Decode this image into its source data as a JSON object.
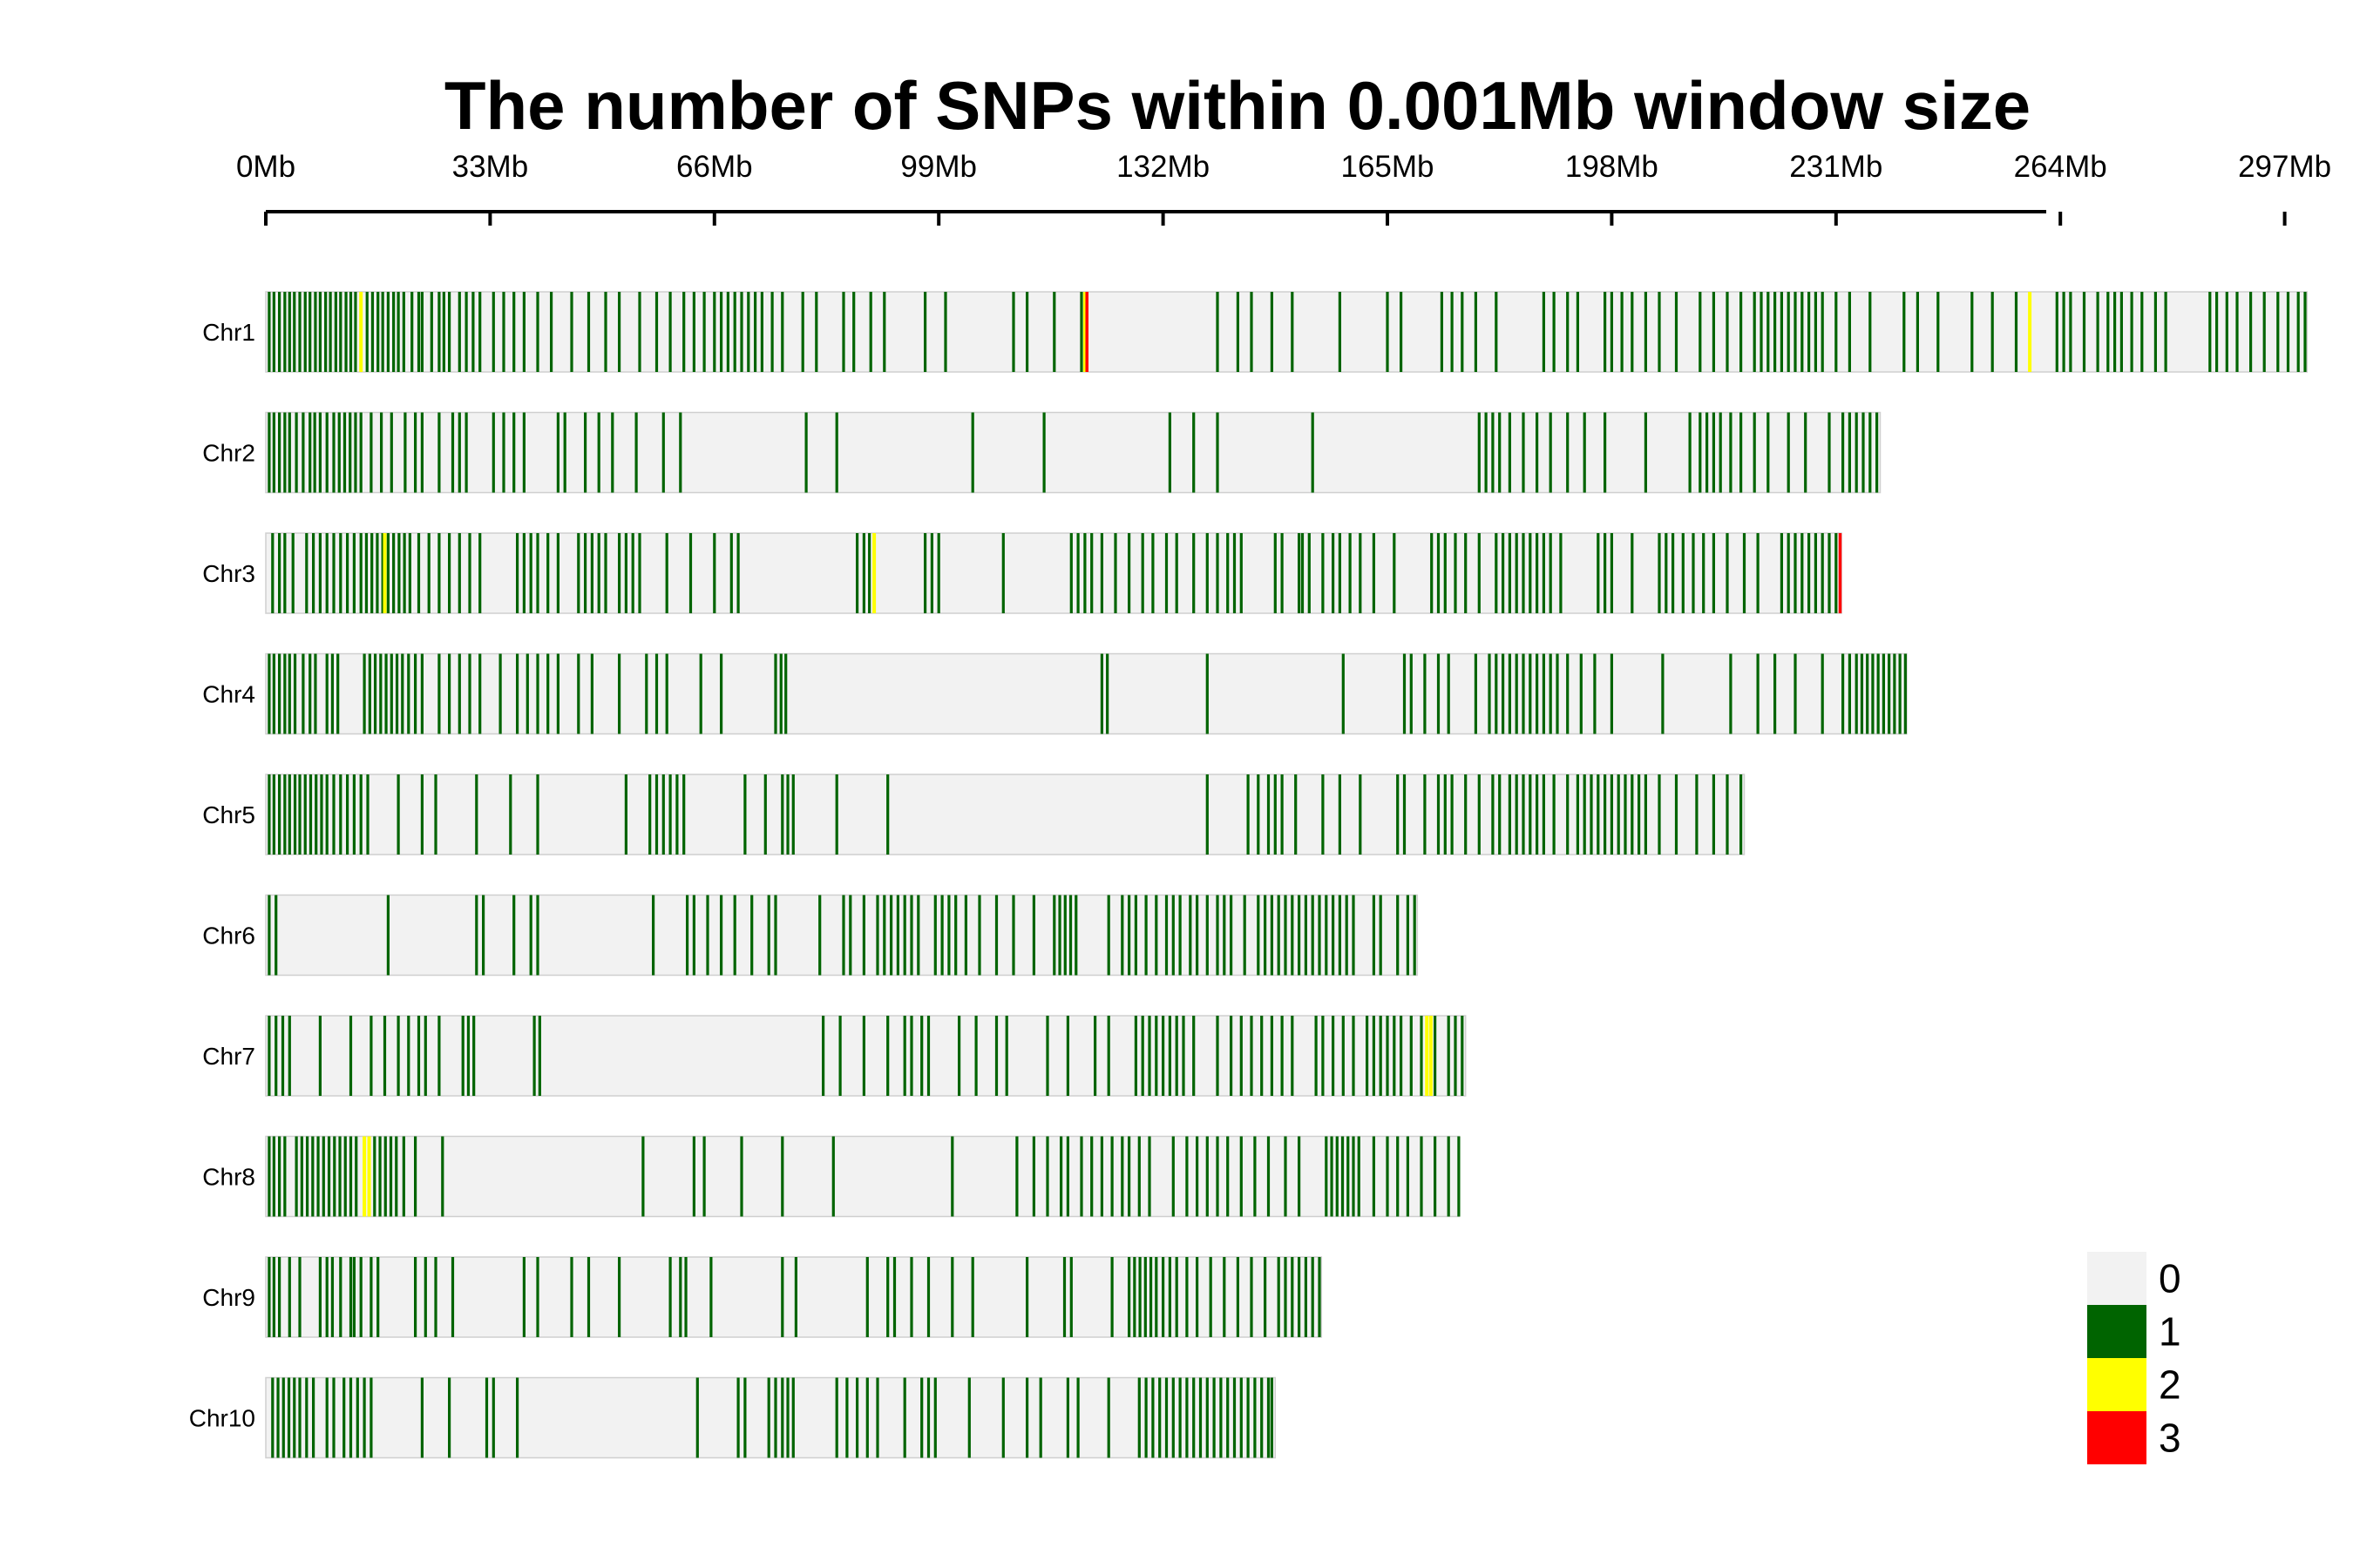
{
  "chart_data": {
    "type": "heatmap",
    "title": "The number of SNPs within 0.001Mb window size",
    "x_axis": {
      "unit": "Mb",
      "range": [
        0,
        300
      ],
      "ticks": [
        0,
        33,
        66,
        99,
        132,
        165,
        198,
        231,
        264,
        297
      ],
      "tick_labels": [
        "0Mb",
        "33Mb",
        "66Mb",
        "99Mb",
        "132Mb",
        "165Mb",
        "198Mb",
        "231Mb",
        "264Mb",
        "297Mb"
      ],
      "position": "top"
    },
    "legend": {
      "placement": "bottom-right",
      "items": [
        {
          "label": "0",
          "color": "#F2F2F2"
        },
        {
          "label": "1",
          "color": "#006400"
        },
        {
          "label": "2",
          "color": "#FFFF00"
        },
        {
          "label": "3",
          "color": "#FF0000"
        }
      ]
    },
    "chromosomes": [
      {
        "name": "Chr1",
        "length_mb": 300.3,
        "snps_1": [
          0.5,
          1.2,
          2.0,
          2.8,
          3.5,
          4.2,
          5.0,
          5.8,
          6.5,
          7.3,
          8.0,
          8.8,
          9.5,
          10.3,
          11.0,
          11.8,
          12.5,
          13.2,
          14.9,
          15.7,
          16.5,
          17.2,
          18.0,
          18.8,
          19.5,
          20.3,
          21.5,
          22.5,
          23.0,
          24.4,
          25.5,
          26.2,
          27.0,
          28.5,
          29.5,
          30.5,
          31.5,
          33.5,
          35.0,
          36.5,
          38.0,
          40.0,
          42.0,
          45.0,
          47.5,
          50.0,
          52.0,
          55.0,
          57.5,
          59.5,
          61.5,
          63.0,
          64.5,
          66.0,
          67.0,
          68.0,
          69.0,
          70.0,
          71.0,
          72.0,
          73.0,
          74.5,
          76.0,
          79.0,
          81.0,
          85.0,
          86.5,
          89.0,
          91.0,
          97.0,
          100.0,
          110.0,
          112.0,
          116.0,
          120.0,
          140.0,
          143.0,
          145.0,
          148.0,
          151.0,
          158.0,
          165.0,
          167.0,
          173.0,
          174.5,
          176.0,
          178.0,
          181.0,
          188.0,
          189.5,
          191.5,
          193.0,
          197.0,
          198.0,
          199.5,
          201.0,
          203.0,
          205.0,
          207.5,
          211.0,
          213.0,
          215.0,
          217.0,
          219.0,
          220.0,
          221.0,
          222.0,
          223.0,
          224.0,
          225.0,
          226.0,
          227.0,
          228.0,
          229.0,
          231.0,
          233.0,
          236.0,
          241.0,
          243.0,
          246.0,
          251.0,
          254.0,
          257.5,
          263.5,
          264.5,
          265.5,
          267.5,
          269.5,
          271.0,
          272.0,
          273.0,
          274.5,
          276.0,
          278.0,
          279.5,
          286.0,
          287.0,
          288.5,
          290.0,
          292.0,
          294.0,
          296.0,
          297.5,
          299.0,
          300.0
        ],
        "snps_2": [
          14.0,
          120.5,
          259.5
        ],
        "snps_3": [
          120.8
        ]
      },
      {
        "name": "Chr2",
        "length_mb": 237.5,
        "snps_1": [
          0.5,
          1.2,
          2.0,
          2.8,
          3.5,
          4.5,
          5.5,
          6.5,
          7.2,
          8.0,
          9.0,
          10.0,
          10.8,
          11.6,
          12.4,
          13.2,
          14.0,
          15.5,
          17.0,
          18.5,
          20.5,
          22.0,
          23.0,
          25.5,
          27.5,
          28.5,
          29.5,
          33.5,
          35.0,
          36.5,
          38.0,
          43.0,
          44.0,
          47.0,
          49.0,
          51.0,
          54.5,
          58.5,
          61.0,
          79.5,
          84.0,
          104.0,
          114.5,
          133.0,
          136.5,
          140.0,
          154.0,
          178.5,
          179.5,
          180.5,
          181.5,
          183.0,
          185.0,
          187.0,
          189.0,
          191.5,
          194.0,
          197.0,
          203.0,
          209.5,
          211.0,
          212.0,
          213.0,
          214.0,
          215.5,
          217.0,
          219.0,
          221.0,
          224.0,
          226.5,
          230.0,
          232.0,
          233.0,
          234.0,
          235.0,
          236.0,
          237.0
        ],
        "snps_2": [],
        "snps_3": []
      },
      {
        "name": "Chr3",
        "length_mb": 231.8,
        "snps_1": [
          1.0,
          2.0,
          2.8,
          4.0,
          6.0,
          7.0,
          8.0,
          9.0,
          10.0,
          11.0,
          12.0,
          13.0,
          14.0,
          14.8,
          15.6,
          16.4,
          17.2,
          18.0,
          18.8,
          19.6,
          20.4,
          21.2,
          22.5,
          24.0,
          25.5,
          27.0,
          28.5,
          30.0,
          31.5,
          37.0,
          38.0,
          39.0,
          40.0,
          41.5,
          43.0,
          46.0,
          47.0,
          48.0,
          49.0,
          50.0,
          52.0,
          53.0,
          54.0,
          55.0,
          59.0,
          62.5,
          66.0,
          68.5,
          69.5,
          87.0,
          88.0,
          88.8,
          97.0,
          98.0,
          99.0,
          108.5,
          118.5,
          119.5,
          120.5,
          121.5,
          123.0,
          125.0,
          127.0,
          129.0,
          130.5,
          132.5,
          134.0,
          136.5,
          138.5,
          140.0,
          141.5,
          142.5,
          143.5,
          148.5,
          149.5,
          152.0,
          152.5,
          153.5,
          155.5,
          157.0,
          158.0,
          159.5,
          161.0,
          163.0,
          166.0,
          171.5,
          172.5,
          173.5,
          175.0,
          176.5,
          178.5,
          181.0,
          182.0,
          183.0,
          184.0,
          185.0,
          186.0,
          187.0,
          188.0,
          189.0,
          190.5,
          196.0,
          197.0,
          198.0,
          201.0,
          205.0,
          206.0,
          207.0,
          208.5,
          210.0,
          211.5,
          213.0,
          215.0,
          217.5,
          219.5,
          223.0,
          224.0,
          225.0,
          226.0,
          227.0,
          228.0,
          229.0,
          230.0,
          231.0
        ],
        "snps_2": [
          17.5,
          89.5
        ],
        "snps_3": [
          231.6
        ]
      },
      {
        "name": "Chr4",
        "length_mb": 241.4,
        "snps_1": [
          0.5,
          1.2,
          2.0,
          2.8,
          3.5,
          4.3,
          5.5,
          6.5,
          7.3,
          9.0,
          9.8,
          10.6,
          14.5,
          15.3,
          16.1,
          16.9,
          17.7,
          18.5,
          19.3,
          20.1,
          21.0,
          22.0,
          23.0,
          25.5,
          27.0,
          28.5,
          30.0,
          31.5,
          34.5,
          37.0,
          38.5,
          40.0,
          41.5,
          43.0,
          46.0,
          48.0,
          52.0,
          56.0,
          57.5,
          59.0,
          64.0,
          67.0,
          75.0,
          75.8,
          76.5,
          123.0,
          123.8,
          138.5,
          158.5,
          167.5,
          168.5,
          170.5,
          172.5,
          174.0,
          178.0,
          180.0,
          181.0,
          182.0,
          183.0,
          184.0,
          185.0,
          186.0,
          187.0,
          188.0,
          189.0,
          190.0,
          191.5,
          193.5,
          195.5,
          198.0,
          205.5,
          215.5,
          219.5,
          222.0,
          225.0,
          229.0,
          232.0,
          233.0,
          234.0,
          234.8,
          235.6,
          236.4,
          237.2,
          238.0,
          238.8,
          239.6,
          240.4,
          241.2
        ],
        "snps_2": [],
        "snps_3": []
      },
      {
        "name": "Chr5",
        "length_mb": 217.5,
        "snps_1": [
          0.5,
          1.2,
          2.0,
          2.8,
          3.5,
          4.3,
          5.0,
          5.8,
          6.6,
          7.4,
          8.2,
          9.0,
          10.0,
          11.0,
          12.0,
          13.0,
          14.0,
          15.0,
          19.5,
          23.0,
          25.0,
          31.0,
          36.0,
          40.0,
          53.0,
          56.5,
          57.5,
          58.5,
          59.5,
          60.5,
          61.5,
          70.5,
          73.5,
          76.0,
          76.8,
          77.6,
          84.0,
          91.5,
          138.5,
          144.5,
          146.0,
          147.5,
          148.5,
          149.5,
          151.5,
          155.5,
          158.0,
          161.0,
          166.5,
          167.5,
          170.5,
          172.5,
          173.5,
          174.5,
          176.5,
          178.5,
          180.5,
          181.5,
          183.0,
          184.0,
          185.0,
          186.0,
          187.0,
          188.0,
          189.5,
          191.5,
          193.0,
          194.0,
          195.0,
          196.0,
          197.0,
          198.0,
          199.0,
          200.0,
          201.0,
          202.0,
          203.0,
          205.0,
          207.5,
          210.5,
          213.0,
          215.0,
          217.0
        ],
        "snps_2": [],
        "snps_3": []
      },
      {
        "name": "Chr6",
        "length_mb": 169.4,
        "snps_1": [
          0.5,
          1.5,
          18.0,
          31.0,
          32.0,
          36.5,
          39.0,
          40.0,
          57.0,
          62.0,
          63.0,
          65.0,
          67.0,
          69.0,
          71.5,
          74.0,
          75.0,
          81.5,
          85.0,
          86.0,
          88.0,
          90.0,
          91.0,
          92.0,
          93.0,
          94.0,
          95.0,
          96.0,
          98.5,
          99.5,
          100.5,
          101.5,
          103.0,
          105.0,
          107.5,
          110.0,
          113.0,
          116.0,
          116.8,
          117.6,
          118.4,
          119.2,
          124.0,
          126.0,
          127.0,
          128.0,
          129.5,
          131.0,
          132.5,
          133.5,
          134.5,
          136.0,
          137.0,
          138.5,
          140.0,
          141.0,
          142.0,
          144.0,
          146.0,
          147.0,
          148.0,
          149.0,
          150.0,
          151.0,
          152.0,
          153.0,
          154.0,
          155.0,
          156.0,
          157.0,
          158.0,
          159.0,
          160.0,
          163.0,
          164.0,
          166.5,
          168.0,
          169.0
        ],
        "snps_2": [],
        "snps_3": []
      },
      {
        "name": "Chr7",
        "length_mb": 176.5,
        "snps_1": [
          0.5,
          1.5,
          2.5,
          3.5,
          8.0,
          12.5,
          15.5,
          17.5,
          19.5,
          21.0,
          22.5,
          23.5,
          25.5,
          29.0,
          29.8,
          30.6,
          39.5,
          40.3,
          82.0,
          84.5,
          88.0,
          91.5,
          94.0,
          95.0,
          96.5,
          97.5,
          102.0,
          104.5,
          107.5,
          109.0,
          115.0,
          118.0,
          122.0,
          124.0,
          128.0,
          129.0,
          130.0,
          131.0,
          132.0,
          133.0,
          134.0,
          135.0,
          136.5,
          140.0,
          142.0,
          143.5,
          145.0,
          146.5,
          148.0,
          149.5,
          151.0,
          154.5,
          155.5,
          157.0,
          158.5,
          160.0,
          162.0,
          163.0,
          164.0,
          165.0,
          166.0,
          167.0,
          168.5,
          170.0,
          172.0,
          174.0,
          175.0,
          176.0
        ],
        "snps_2": [
          170.8,
          171.4
        ],
        "snps_3": []
      },
      {
        "name": "Chr8",
        "length_mb": 175.6,
        "snps_1": [
          0.5,
          1.2,
          2.0,
          2.8,
          4.5,
          5.3,
          6.1,
          6.9,
          7.7,
          8.5,
          9.3,
          10.1,
          10.9,
          11.7,
          12.5,
          13.3,
          16.0,
          16.8,
          17.6,
          18.4,
          19.2,
          20.3,
          22.0,
          26.0,
          55.5,
          63.0,
          64.5,
          70.0,
          76.0,
          83.5,
          101.0,
          110.5,
          113.0,
          115.0,
          117.0,
          118.0,
          120.0,
          121.5,
          123.0,
          124.5,
          126.0,
          127.0,
          128.5,
          130.0,
          133.5,
          135.5,
          137.0,
          138.5,
          140.0,
          141.5,
          143.5,
          145.5,
          147.5,
          150.0,
          152.0,
          156.0,
          156.8,
          157.6,
          158.4,
          159.2,
          160.0,
          160.8,
          163.0,
          165.0,
          166.5,
          168.0,
          170.0,
          172.0,
          174.0,
          175.5
        ],
        "snps_2": [
          14.5,
          15.2
        ],
        "snps_3": []
      },
      {
        "name": "Chr9",
        "length_mb": 155.3,
        "snps_1": [
          0.5,
          1.2,
          2.0,
          3.5,
          5.0,
          8.0,
          9.0,
          9.8,
          11.0,
          12.5,
          13.0,
          14.0,
          15.5,
          16.5,
          22.0,
          23.5,
          25.0,
          27.5,
          38.0,
          40.0,
          45.0,
          47.5,
          52.0,
          59.5,
          61.0,
          61.8,
          65.5,
          76.0,
          78.0,
          88.5,
          91.5,
          92.5,
          95.0,
          97.5,
          101.0,
          104.0,
          112.0,
          117.5,
          118.5,
          124.5,
          127.0,
          127.8,
          128.6,
          129.4,
          130.2,
          131.0,
          132.0,
          133.0,
          134.0,
          135.5,
          137.0,
          139.0,
          141.0,
          143.0,
          145.0,
          147.0,
          149.0,
          150.0,
          151.0,
          152.0,
          153.0,
          154.0,
          155.0
        ],
        "snps_2": [],
        "snps_3": []
      },
      {
        "name": "Chr10",
        "length_mb": 148.5,
        "snps_1": [
          1.0,
          1.8,
          2.6,
          3.4,
          4.2,
          5.0,
          6.0,
          7.0,
          9.0,
          10.0,
          11.5,
          12.5,
          13.5,
          14.5,
          15.5,
          23.0,
          27.0,
          32.5,
          33.5,
          37.0,
          63.5,
          69.5,
          70.5,
          74.0,
          75.0,
          76.0,
          76.8,
          77.6,
          84.0,
          85.5,
          87.0,
          88.5,
          90.0,
          94.0,
          96.5,
          97.5,
          98.5,
          103.5,
          108.5,
          112.0,
          114.0,
          118.0,
          119.5,
          124.0,
          128.5,
          129.5,
          130.5,
          131.5,
          132.5,
          133.5,
          134.5,
          135.5,
          136.5,
          137.5,
          138.5,
          139.5,
          140.5,
          141.5,
          142.5,
          143.5,
          144.5,
          145.5,
          146.5,
          147.5,
          148.0
        ],
        "snps_2": [],
        "snps_3": []
      }
    ]
  }
}
